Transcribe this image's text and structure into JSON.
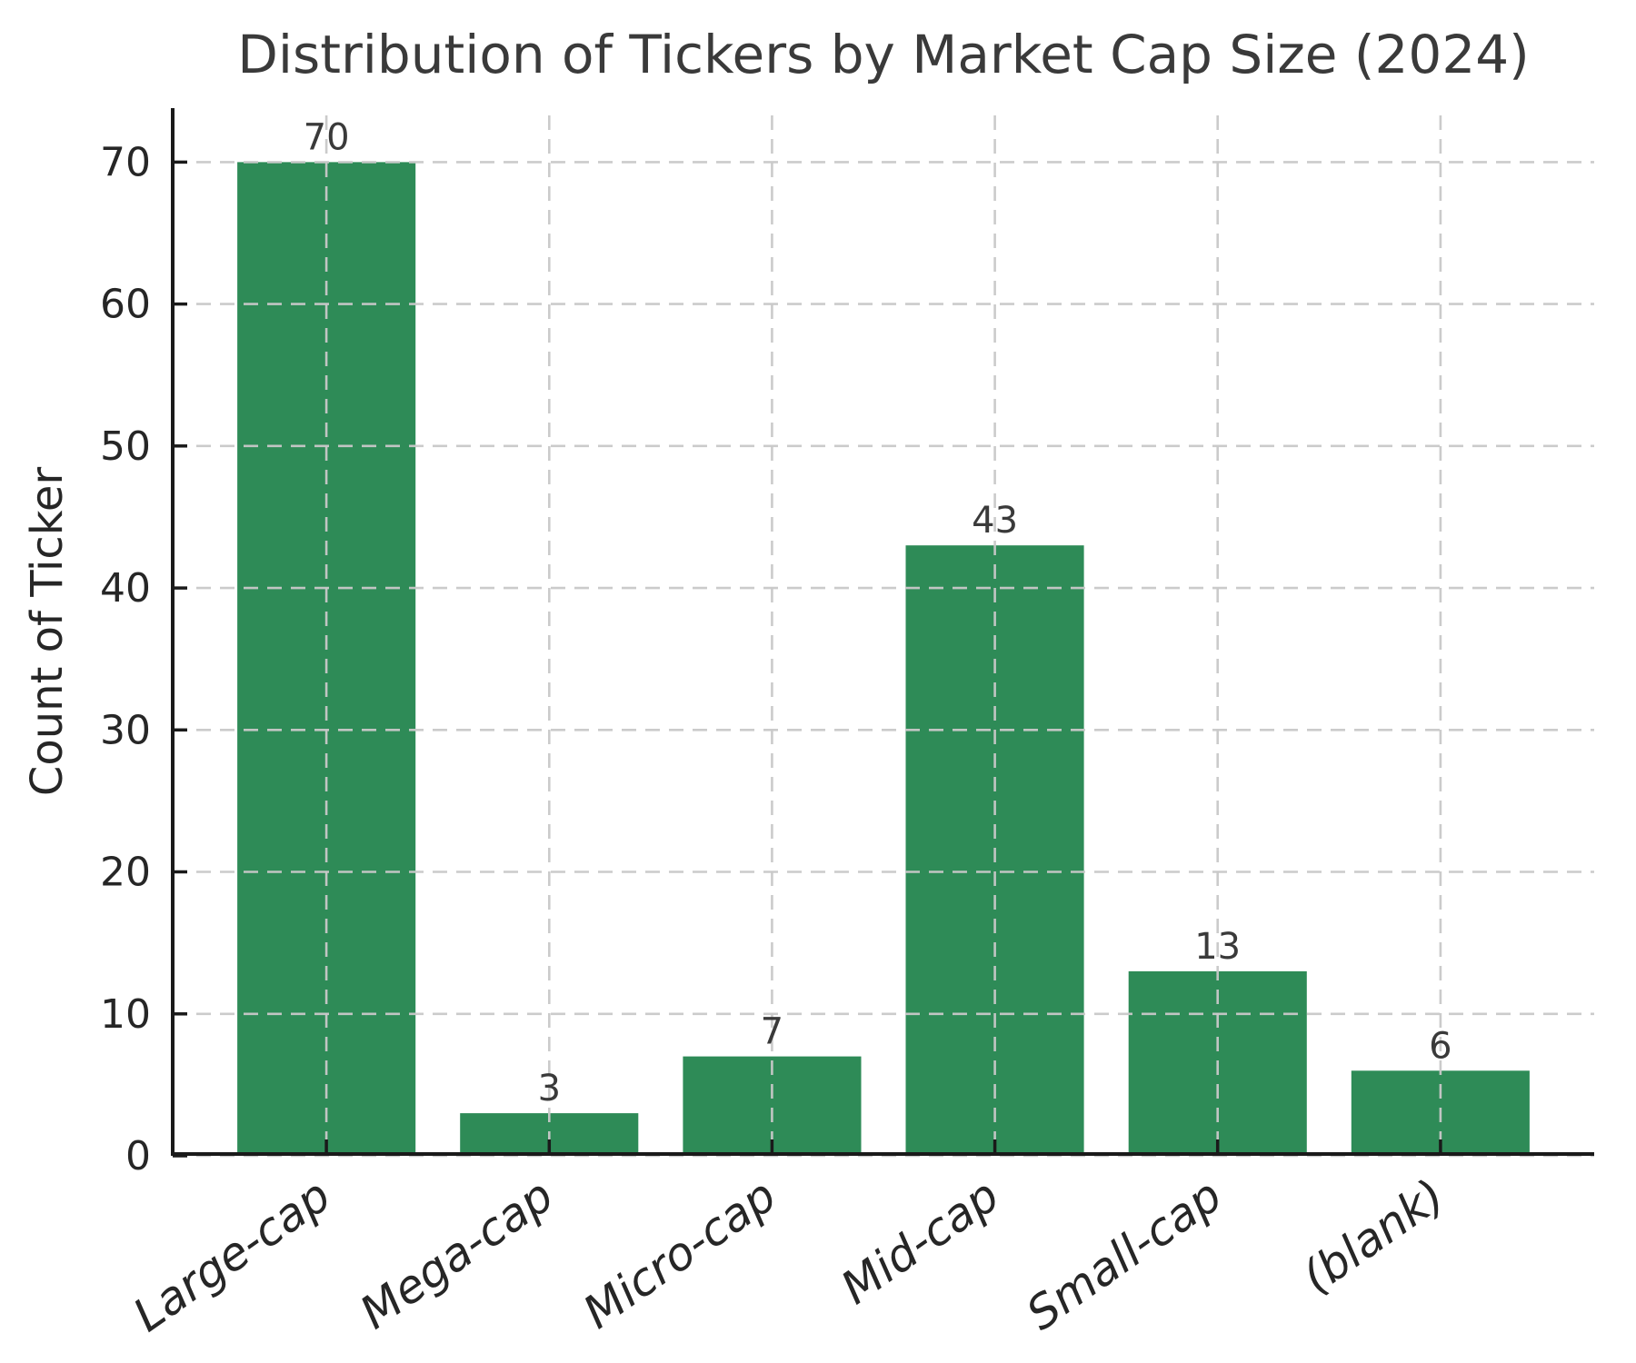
{
  "chart_data": {
    "type": "bar",
    "title": "Distribution of Tickers by Market Cap Size (2024)",
    "xlabel": "",
    "ylabel": "Count of Ticker",
    "categories": [
      "Large-cap",
      "Mega-cap",
      "Micro-cap",
      "Mid-cap",
      "Small-cap",
      "(blank)"
    ],
    "values": [
      70,
      3,
      7,
      43,
      13,
      6
    ],
    "bar_value_labels": [
      "70",
      "3",
      "7",
      "43",
      "13",
      "6"
    ],
    "yticks": [
      0,
      10,
      20,
      30,
      40,
      50,
      60,
      70
    ],
    "ylim": [
      0,
      73.8
    ],
    "grid": "dashed, drawn over bars",
    "legend_position": "none",
    "colors": {
      "bar": "#2e8b57",
      "grid": "#c9c9c9",
      "spine": "#1a1a1a",
      "tick_text": "#262626",
      "value_text": "#3a3a3a",
      "title_text": "#3a3a3a"
    }
  }
}
